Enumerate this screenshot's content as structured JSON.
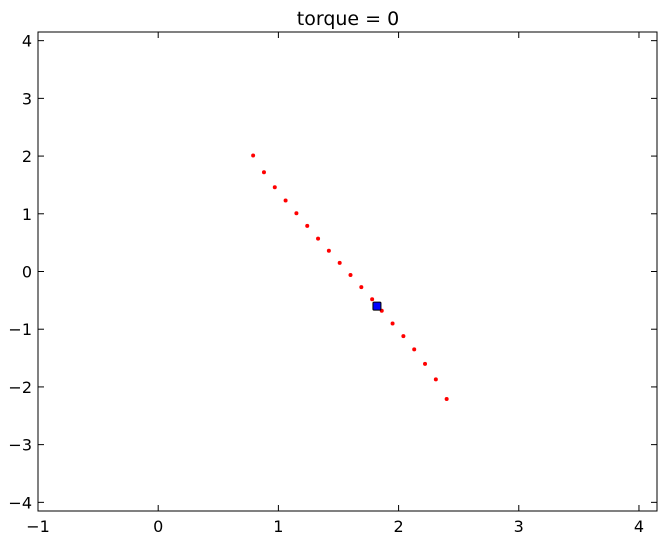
{
  "chart_data": {
    "type": "scatter",
    "title": "torque = 0",
    "xlabel": "",
    "ylabel": "",
    "xlim": [
      -1,
      4.15
    ],
    "ylim": [
      -4.15,
      4.15
    ],
    "grid": false,
    "x_ticks": [
      {
        "value": -1,
        "label": "−1"
      },
      {
        "value": 0,
        "label": "0"
      },
      {
        "value": 1,
        "label": "1"
      },
      {
        "value": 2,
        "label": "2"
      },
      {
        "value": 3,
        "label": "3"
      },
      {
        "value": 4,
        "label": "4"
      }
    ],
    "y_ticks": [
      {
        "value": -4,
        "label": "−4"
      },
      {
        "value": -3,
        "label": "−3"
      },
      {
        "value": -2,
        "label": "−2"
      },
      {
        "value": -1,
        "label": "−1"
      },
      {
        "value": 0,
        "label": "0"
      },
      {
        "value": 1,
        "label": "1"
      },
      {
        "value": 2,
        "label": "2"
      },
      {
        "value": 3,
        "label": "3"
      },
      {
        "value": 4,
        "label": "4"
      }
    ],
    "series": [
      {
        "marker": "dot",
        "color": "#ff0000",
        "points": [
          {
            "x": 0.79,
            "y": 2.01
          },
          {
            "x": 0.88,
            "y": 1.72
          },
          {
            "x": 0.97,
            "y": 1.46
          },
          {
            "x": 1.06,
            "y": 1.23
          },
          {
            "x": 1.15,
            "y": 1.01
          },
          {
            "x": 1.24,
            "y": 0.79
          },
          {
            "x": 1.33,
            "y": 0.57
          },
          {
            "x": 1.42,
            "y": 0.36
          },
          {
            "x": 1.51,
            "y": 0.15
          },
          {
            "x": 1.6,
            "y": -0.06
          },
          {
            "x": 1.69,
            "y": -0.27
          },
          {
            "x": 1.78,
            "y": -0.48
          },
          {
            "x": 1.86,
            "y": -0.68
          },
          {
            "x": 1.95,
            "y": -0.9
          },
          {
            "x": 2.04,
            "y": -1.12
          },
          {
            "x": 2.13,
            "y": -1.35
          },
          {
            "x": 2.22,
            "y": -1.6
          },
          {
            "x": 2.31,
            "y": -1.87
          },
          {
            "x": 2.4,
            "y": -2.21
          }
        ]
      },
      {
        "marker": "square",
        "color": "#0000ff",
        "points": [
          {
            "x": 1.82,
            "y": -0.6
          }
        ]
      }
    ]
  }
}
